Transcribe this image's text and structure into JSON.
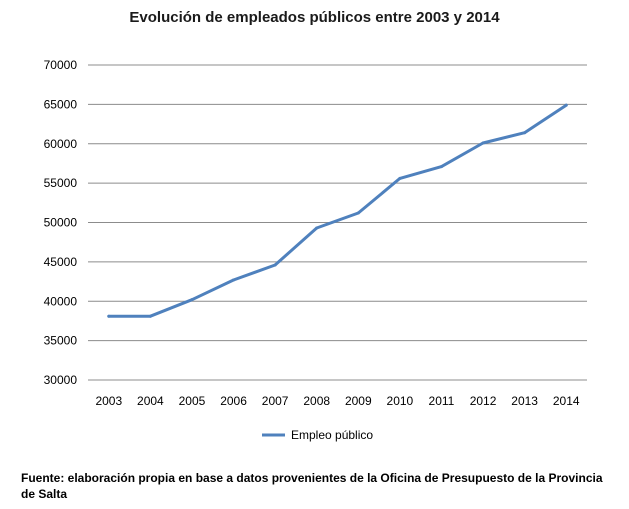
{
  "chart_data": {
    "type": "line",
    "title": "Evolución de empleados públicos entre 2003 y 2014",
    "xlabel": "",
    "ylabel": "",
    "categories": [
      "2003",
      "2004",
      "2005",
      "2006",
      "2007",
      "2008",
      "2009",
      "2010",
      "2011",
      "2012",
      "2013",
      "2014"
    ],
    "series": [
      {
        "name": "Empleo público",
        "color": "#4f81bd",
        "values": [
          38100,
          38100,
          40200,
          42700,
          44600,
          49300,
          51200,
          55600,
          57100,
          60100,
          61400,
          64900
        ]
      }
    ],
    "ylim": [
      30000,
      70000
    ],
    "yticks": [
      "30000",
      "35000",
      "40000",
      "45000",
      "50000",
      "55000",
      "60000",
      "65000",
      "70000"
    ],
    "grid": true,
    "legend_position": "bottom"
  },
  "source_note": "Fuente: elaboración propia en base a datos provenientes de la Oficina de Presupuesto de la Provincia de Salta"
}
